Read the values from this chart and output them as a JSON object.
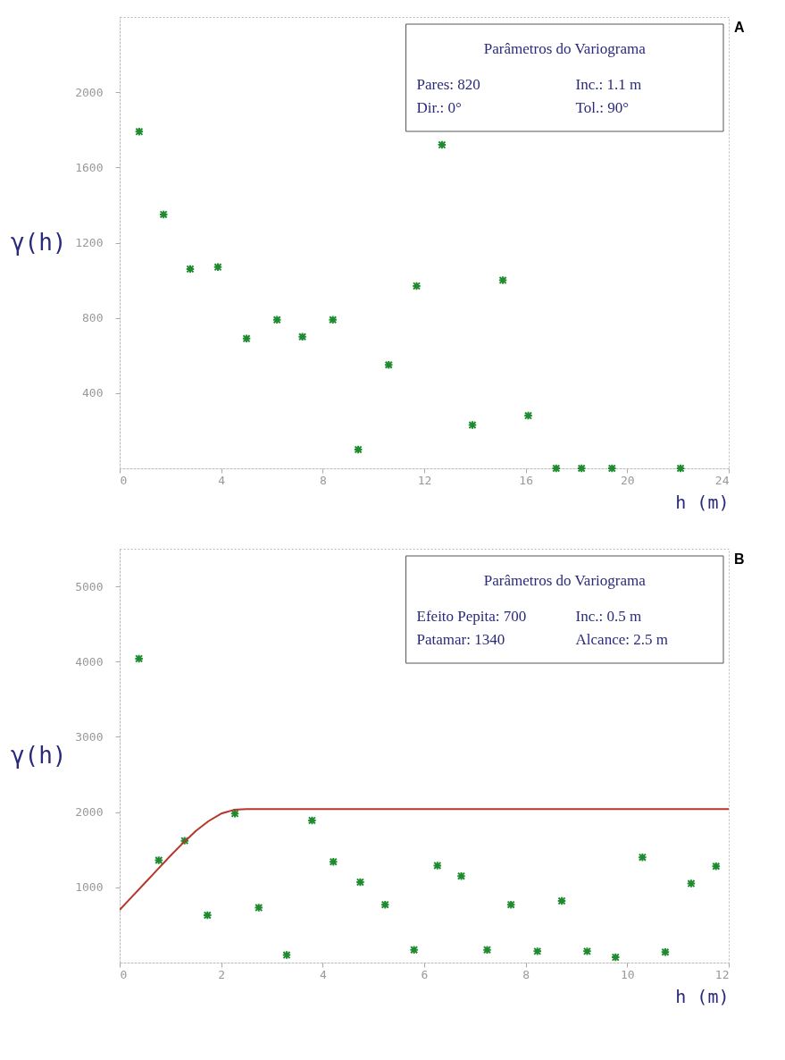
{
  "chart_data": [
    {
      "type": "scatter",
      "xlabel": "h (m)",
      "ylabel": "γ(h)",
      "xlim": [
        0,
        24
      ],
      "xticks": [
        0,
        4,
        8,
        12,
        16,
        20,
        24
      ],
      "ylim": [
        0,
        2400
      ],
      "yticks": [
        400,
        800,
        1200,
        1600,
        2000
      ],
      "grid": false,
      "marker": "cross",
      "annotations": [
        "Parâmetros do Variograma",
        "Pares: 820",
        "Inc.: 1.1 m",
        "Dir.: 0°",
        "Tol.: 90°",
        "A"
      ],
      "series": [
        {
          "color": "#1e8c2e",
          "x": [
            0.77,
            1.73,
            2.78,
            3.87,
            5.0,
            6.2,
            7.2,
            8.4,
            9.4,
            10.6,
            11.7,
            12.7,
            13.9,
            15.1,
            16.1,
            17.2,
            18.2,
            19.4,
            22.1
          ],
          "values": [
            1790,
            1350,
            1060,
            1070,
            690,
            790,
            700,
            790,
            100,
            550,
            970,
            1720,
            230,
            1000,
            280,
            0,
            0,
            0,
            0
          ]
        }
      ]
    },
    {
      "type": "scatter",
      "xlabel": "h (m)",
      "ylabel": "γ(h)",
      "xlim": [
        0,
        12
      ],
      "xticks": [
        0,
        2,
        4,
        6,
        8,
        10,
        12
      ],
      "ylim": [
        0,
        5500
      ],
      "yticks": [
        1000,
        2000,
        3000,
        4000,
        5000
      ],
      "grid": false,
      "marker": "cross",
      "annotations": [
        "Parâmetros do Variograma",
        "Efeito Pepita: 700",
        "Inc.: 0.5 m",
        "Patamar: 1340",
        "Alcance: 2.5 m",
        "B"
      ],
      "series": [
        {
          "color": "#1e8c2e",
          "x": [
            0.38,
            0.77,
            1.28,
            1.73,
            2.27,
            2.74,
            3.29,
            3.79,
            4.21,
            4.74,
            5.23,
            5.8,
            6.26,
            6.73,
            7.24,
            7.71,
            8.23,
            8.71,
            9.21,
            9.77,
            10.3,
            10.75,
            11.26,
            11.75
          ],
          "values": [
            4040,
            1360,
            1620,
            630,
            1980,
            730,
            100,
            1890,
            1340,
            1070,
            770,
            170,
            1290,
            1150,
            170,
            770,
            150,
            820,
            150,
            70,
            1400,
            140,
            1050,
            1280
          ]
        },
        {
          "type": "line",
          "marker": "none",
          "color": "#b5362b",
          "x": [
            0,
            0.25,
            0.5,
            0.75,
            1.0,
            1.25,
            1.5,
            1.75,
            2.0,
            2.25,
            2.5,
            12
          ],
          "values": [
            700,
            880,
            1060,
            1240,
            1420,
            1590,
            1750,
            1880,
            1980,
            2030,
            2040,
            2040
          ]
        }
      ]
    }
  ]
}
